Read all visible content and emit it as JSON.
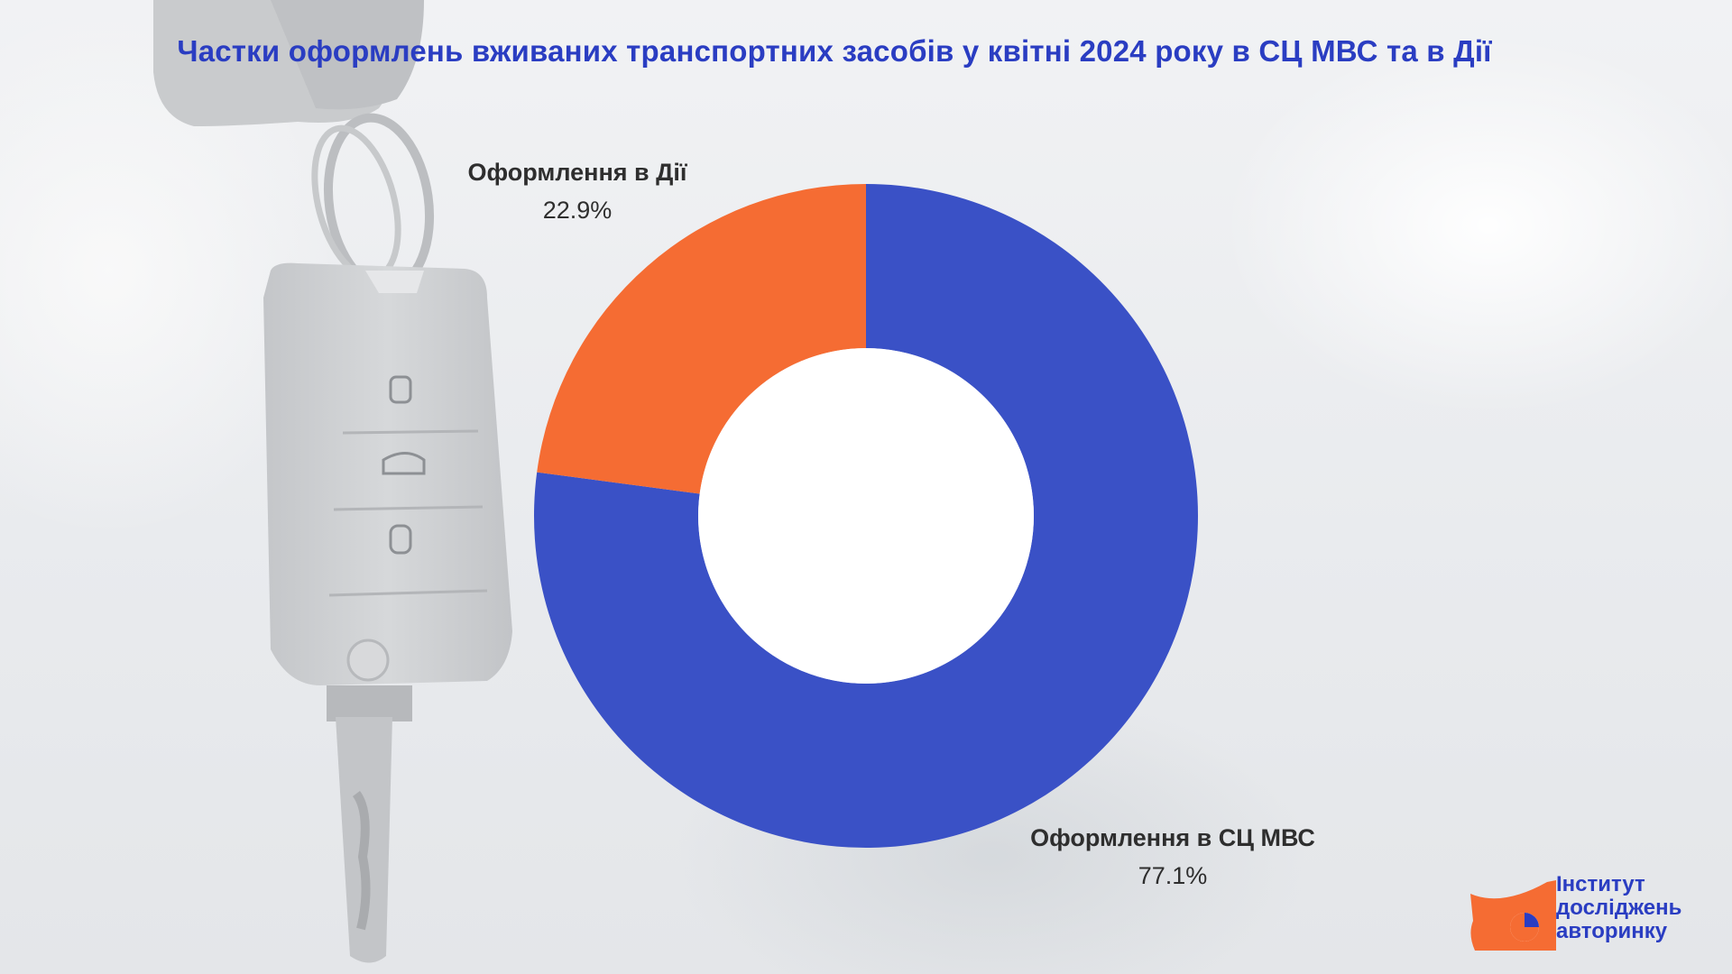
{
  "title": "Частки оформлень вживаних транспортних засобів у квітні 2024 року в СЦ МВС та в Дії",
  "chart_data": {
    "type": "pie",
    "title": "Частки оформлень вживаних транспортних засобів у квітні 2024 року в СЦ МВС та в Дії",
    "donut": true,
    "slices": [
      {
        "label": "Оформлення в СЦ МВС",
        "value": 77.1,
        "value_label": "77.1%",
        "color": "#3a51c6"
      },
      {
        "label": "Оформлення в Дії",
        "value": 22.9,
        "value_label": "22.9%",
        "color": "#f56c33"
      }
    ]
  },
  "logo": {
    "line1": "Інститут",
    "line2": "досліджень",
    "line3": "авторинку",
    "text_color": "#2a3dc2",
    "shape_color": "#f56c33"
  },
  "background": {
    "image": "car-key-icon"
  }
}
